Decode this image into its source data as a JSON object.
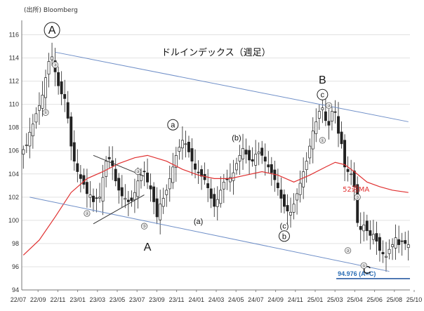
{
  "chart_data": {
    "type": "candlestick",
    "title": "ドルインデックス（週足）",
    "source": "(出所) Bloomberg",
    "x_tick_labels": [
      "22/07",
      "22/09",
      "22/11",
      "23/01",
      "23/03",
      "23/05",
      "23/07",
      "23/09",
      "23/11",
      "24/01",
      "24/03",
      "24/05",
      "24/07",
      "24/09",
      "24/11",
      "25/01",
      "25/03",
      "25/04",
      "25/06",
      "25/08",
      "25/10"
    ],
    "ylim": [
      94,
      117
    ],
    "y_ticks": [
      94,
      96,
      98,
      100,
      102,
      104,
      106,
      108,
      110,
      112,
      114,
      116
    ],
    "price_series": {
      "name": "",
      "color": "#222222",
      "anchors": [
        [
          0,
          106.1
        ],
        [
          1,
          106.5
        ],
        [
          2,
          107.6
        ],
        [
          3,
          108.3
        ],
        [
          4,
          109.2
        ],
        [
          5,
          109.9
        ],
        [
          6,
          110.8
        ],
        [
          7,
          112.3
        ],
        [
          8,
          113.7
        ],
        [
          9,
          114.1
        ],
        [
          10,
          112.8
        ],
        [
          11,
          111.6
        ],
        [
          12,
          110.9
        ],
        [
          13,
          110.5
        ],
        [
          14,
          108.8
        ],
        [
          15,
          106.4
        ],
        [
          16,
          105.1
        ],
        [
          17,
          104.2
        ],
        [
          18,
          103.6
        ],
        [
          19,
          103.1
        ],
        [
          20,
          102.3
        ],
        [
          21,
          102.2
        ],
        [
          22,
          101.6
        ],
        [
          23,
          101.9
        ],
        [
          24,
          102.0
        ],
        [
          25,
          103.7
        ],
        [
          26,
          105.1
        ],
        [
          27,
          105.3
        ],
        [
          28,
          104.7
        ],
        [
          29,
          103.4
        ],
        [
          30,
          102.6
        ],
        [
          31,
          102.1
        ],
        [
          32,
          101.9
        ],
        [
          33,
          101.6
        ],
        [
          34,
          101.7
        ],
        [
          35,
          102.4
        ],
        [
          36,
          103.4
        ],
        [
          37,
          103.9
        ],
        [
          38,
          104.2
        ],
        [
          39,
          103.3
        ],
        [
          40,
          102.7
        ],
        [
          41,
          101.6
        ],
        [
          42,
          100.3
        ],
        [
          43,
          101.4
        ],
        [
          44,
          101.9
        ],
        [
          45,
          102.6
        ],
        [
          46,
          103.6
        ],
        [
          47,
          104.6
        ],
        [
          48,
          105.6
        ],
        [
          49,
          106.3
        ],
        [
          50,
          106.9
        ],
        [
          51,
          106.6
        ],
        [
          52,
          105.9
        ],
        [
          53,
          105.1
        ],
        [
          54,
          104.4
        ],
        [
          55,
          104.1
        ],
        [
          56,
          103.8
        ],
        [
          57,
          103.5
        ],
        [
          58,
          102.8
        ],
        [
          59,
          101.9
        ],
        [
          60,
          101.2
        ],
        [
          61,
          101.8
        ],
        [
          62,
          102.6
        ],
        [
          63,
          103.3
        ],
        [
          64,
          103.5
        ],
        [
          65,
          103.7
        ],
        [
          66,
          104.1
        ],
        [
          67,
          104.9
        ],
        [
          68,
          105.6
        ],
        [
          69,
          106.2
        ],
        [
          70,
          105.7
        ],
        [
          71,
          105.2
        ],
        [
          72,
          105.1
        ],
        [
          73,
          105.7
        ],
        [
          74,
          105.9
        ],
        [
          75,
          105.6
        ],
        [
          76,
          105.1
        ],
        [
          77,
          104.6
        ],
        [
          78,
          104.1
        ],
        [
          79,
          103.5
        ],
        [
          80,
          102.8
        ],
        [
          81,
          101.9
        ],
        [
          82,
          101.2
        ],
        [
          83,
          100.8
        ],
        [
          84,
          100.7
        ],
        [
          85,
          101.4
        ],
        [
          86,
          102.3
        ],
        [
          87,
          103.2
        ],
        [
          88,
          104.2
        ],
        [
          89,
          105.1
        ],
        [
          90,
          106.4
        ],
        [
          91,
          107.7
        ],
        [
          92,
          108.5
        ],
        [
          93,
          109.4
        ],
        [
          94,
          109.7
        ],
        [
          95,
          108.6
        ],
        [
          96,
          108.2
        ],
        [
          97,
          109.4
        ],
        [
          98,
          109.3
        ],
        [
          99,
          107.5
        ],
        [
          100,
          106.6
        ],
        [
          101,
          104.6
        ],
        [
          102,
          104.2
        ],
        [
          103,
          104.0
        ],
        [
          104,
          102.9
        ],
        [
          105,
          99.8
        ],
        [
          106,
          99.2
        ],
        [
          107,
          99.6
        ],
        [
          108,
          99.1
        ],
        [
          109,
          98.7
        ],
        [
          110,
          98.8
        ],
        [
          111,
          98.2
        ],
        [
          112,
          97.4
        ],
        [
          113,
          97.1
        ],
        [
          114,
          96.9
        ],
        [
          115,
          97.5
        ],
        [
          116,
          97.9
        ],
        [
          117,
          98.5
        ],
        [
          118,
          97.9
        ],
        [
          119,
          98.2
        ],
        [
          120,
          98.0
        ],
        [
          121,
          97.9
        ]
      ]
    },
    "ma_series": {
      "name": "52週MA",
      "color": "#e03030",
      "points": [
        [
          0,
          97.0
        ],
        [
          5,
          98.3
        ],
        [
          10,
          100.3
        ],
        [
          15,
          102.4
        ],
        [
          20,
          103.6
        ],
        [
          25,
          104.2
        ],
        [
          30,
          104.9
        ],
        [
          35,
          105.4
        ],
        [
          39,
          105.6
        ],
        [
          45,
          105.1
        ],
        [
          50,
          104.4
        ],
        [
          55,
          103.9
        ],
        [
          60,
          103.6
        ],
        [
          65,
          103.6
        ],
        [
          70,
          103.9
        ],
        [
          75,
          104.2
        ],
        [
          80,
          103.9
        ],
        [
          85,
          103.3
        ],
        [
          90,
          103.9
        ],
        [
          95,
          104.6
        ],
        [
          98,
          105.0
        ],
        [
          101,
          104.8
        ],
        [
          104,
          104.2
        ],
        [
          108,
          103.3
        ],
        [
          112,
          102.9
        ],
        [
          116,
          102.6
        ],
        [
          121,
          102.4
        ]
      ]
    },
    "channel_lines": {
      "color": "#6f8fc8",
      "upper": [
        [
          10,
          114.5
        ],
        [
          121,
          108.5
        ]
      ],
      "lower": [
        [
          2,
          102.0
        ],
        [
          115,
          95.6
        ]
      ]
    },
    "triangle_lines": {
      "color": "#333333",
      "upper": [
        [
          22,
          105.6
        ],
        [
          38,
          103.8
        ]
      ],
      "lower": [
        [
          22,
          99.7
        ],
        [
          38,
          102.2
        ]
      ]
    },
    "target_line": {
      "value": 94.976,
      "label": "94.976 (A=C)",
      "color": "#1a4f9c",
      "from_x": 101,
      "to_x": 121
    },
    "wave_labels": [
      {
        "text": "A",
        "circled": true,
        "big": true,
        "x": 9,
        "y": 116.1
      },
      {
        "text": "a",
        "circled": true,
        "big": false,
        "x": 47,
        "y": 108.0
      },
      {
        "text": "(b)",
        "circled": false,
        "big": false,
        "x": 67,
        "y": 106.9
      },
      {
        "text": "B",
        "circled": false,
        "big": true,
        "x": 94,
        "y": 111.8
      },
      {
        "text": "c",
        "circled": true,
        "big": false,
        "x": 94,
        "y": 110.6
      },
      {
        "text": "A",
        "circled": false,
        "big": true,
        "x": 39,
        "y": 97.4
      },
      {
        "text": "(a)",
        "circled": false,
        "big": false,
        "x": 55,
        "y": 99.7
      },
      {
        "text": "(c)",
        "circled": false,
        "big": false,
        "x": 82,
        "y": 99.3
      },
      {
        "text": "b",
        "circled": true,
        "big": false,
        "x": 82,
        "y": 98.4
      },
      {
        "text": "C",
        "circled": false,
        "big": true,
        "x": 108,
        "y": 95.4
      }
    ],
    "small_markers": [
      {
        "text": "③",
        "x": 10,
        "y": 113.4
      },
      {
        "text": "①",
        "x": 7,
        "y": 109.3
      },
      {
        "text": "②",
        "x": 20,
        "y": 100.6
      },
      {
        "text": "③",
        "x": 36,
        "y": 104.2
      },
      {
        "text": "⑤",
        "x": 38,
        "y": 99.5
      },
      {
        "text": "③",
        "x": 96,
        "y": 109.9
      },
      {
        "text": "①",
        "x": 94,
        "y": 106.9
      },
      {
        "text": "③",
        "x": 105,
        "y": 102.0
      },
      {
        "text": "②",
        "x": 102,
        "y": 97.4
      },
      {
        "text": "⑤",
        "x": 107,
        "y": 96.1
      }
    ]
  }
}
